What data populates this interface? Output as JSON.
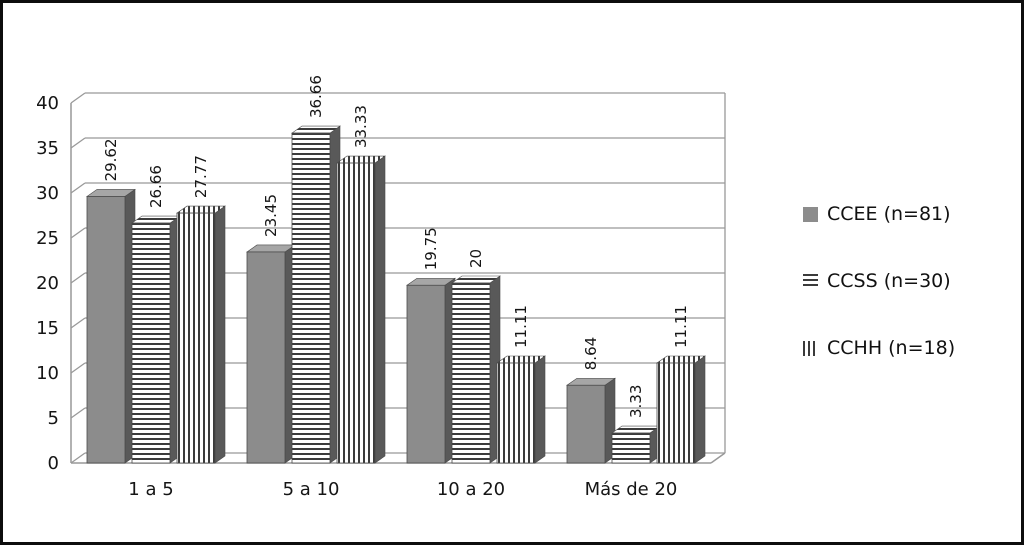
{
  "chart_data": {
    "type": "bar",
    "style": "3d-clustered",
    "title": "",
    "xlabel": "",
    "ylabel": "",
    "categories": [
      "1 a 5",
      "5 a 10",
      "10 a 20",
      "Más de 20"
    ],
    "series": [
      {
        "key": "ccee",
        "name": "CCEE (n=81)",
        "pattern": "solid",
        "values": [
          29.62,
          23.45,
          19.75,
          8.64
        ],
        "labels": [
          "29.62",
          "23.45",
          "19.75",
          "8.64"
        ]
      },
      {
        "key": "ccss",
        "name": "CCSS (n=30)",
        "pattern": "horizontal-stripes",
        "values": [
          26.66,
          36.66,
          20,
          3.33
        ],
        "labels": [
          "26.66",
          "36.66",
          "20",
          "3.33"
        ]
      },
      {
        "key": "cchh",
        "name": "CCHH (n=18)",
        "pattern": "vertical-stripes",
        "values": [
          27.77,
          33.33,
          11.11,
          11.11
        ],
        "labels": [
          "27.77",
          "33.33",
          "11.11",
          "11.11"
        ]
      }
    ],
    "y_axis": {
      "min": 0,
      "max": 40,
      "step": 5,
      "tick_labels": [
        "0",
        "5",
        "10",
        "15",
        "20",
        "25",
        "30",
        "35",
        "40"
      ]
    },
    "legend_position": "right",
    "grid": true,
    "data_labels": "rotated-vertical",
    "colors": {
      "bar_gray": "#8c8c8c",
      "bar_top": "#a6a6a6",
      "bar_side": "#595959",
      "stripe": "#3b3b3b",
      "grid_line": "#999999",
      "text": "#151515"
    }
  }
}
